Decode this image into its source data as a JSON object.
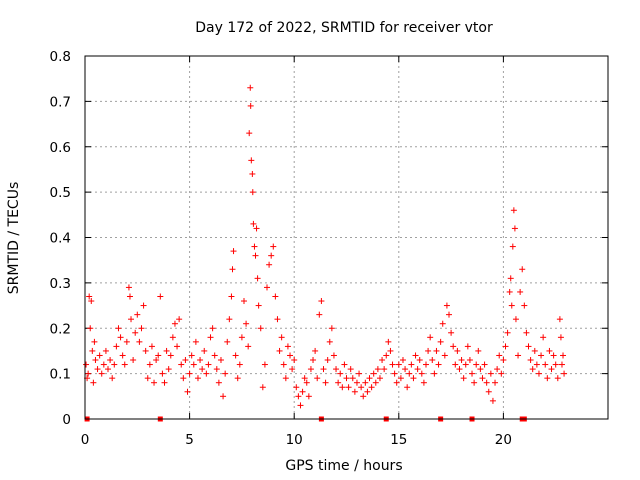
{
  "chart_data": {
    "type": "scatter",
    "title": "Day 172 of 2022, SRMTID for receiver vtor",
    "xlabel": "GPS time / hours",
    "ylabel": "SRMTID / TECUs",
    "xlim": [
      0,
      25
    ],
    "ylim": [
      0,
      0.8
    ],
    "xticks": [
      0,
      5,
      10,
      15,
      20
    ],
    "yticks": [
      0,
      0.1,
      0.2,
      0.3,
      0.4,
      0.5,
      0.6,
      0.7,
      0.8
    ],
    "xtick_labels": [
      "0",
      "5",
      "10",
      "15",
      "20"
    ],
    "ytick_labels": [
      "0",
      "0.1",
      "0.2",
      "0.3",
      "0.4",
      "0.5",
      "0.6",
      "0.7",
      "0.8"
    ],
    "grid": true,
    "series_color": "#ff0000",
    "marker": "plus",
    "gap_markers_x": [
      0.1,
      3.6,
      11.3,
      14.4,
      17.0,
      18.5,
      20.9,
      21.0
    ],
    "series": [
      {
        "name": "SRMTID",
        "points": [
          [
            0.05,
            0.12
          ],
          [
            0.1,
            0.09
          ],
          [
            0.15,
            0.1
          ],
          [
            0.2,
            0.27
          ],
          [
            0.25,
            0.2
          ],
          [
            0.3,
            0.26
          ],
          [
            0.35,
            0.15
          ],
          [
            0.4,
            0.08
          ],
          [
            0.45,
            0.17
          ],
          [
            0.5,
            0.13
          ],
          [
            0.6,
            0.11
          ],
          [
            0.7,
            0.14
          ],
          [
            0.8,
            0.1
          ],
          [
            0.9,
            0.12
          ],
          [
            1.0,
            0.15
          ],
          [
            1.1,
            0.11
          ],
          [
            1.2,
            0.13
          ],
          [
            1.3,
            0.09
          ],
          [
            1.4,
            0.12
          ],
          [
            1.5,
            0.16
          ],
          [
            1.6,
            0.2
          ],
          [
            1.7,
            0.18
          ],
          [
            1.8,
            0.14
          ],
          [
            1.9,
            0.12
          ],
          [
            2.0,
            0.17
          ],
          [
            2.1,
            0.29
          ],
          [
            2.15,
            0.27
          ],
          [
            2.2,
            0.22
          ],
          [
            2.3,
            0.13
          ],
          [
            2.4,
            0.19
          ],
          [
            2.5,
            0.23
          ],
          [
            2.6,
            0.17
          ],
          [
            2.7,
            0.2
          ],
          [
            2.8,
            0.25
          ],
          [
            2.9,
            0.15
          ],
          [
            3.0,
            0.09
          ],
          [
            3.1,
            0.12
          ],
          [
            3.2,
            0.16
          ],
          [
            3.3,
            0.08
          ],
          [
            3.4,
            0.13
          ],
          [
            3.5,
            0.14
          ],
          [
            3.6,
            0.27
          ],
          [
            3.7,
            0.1
          ],
          [
            3.8,
            0.08
          ],
          [
            3.9,
            0.15
          ],
          [
            4.0,
            0.11
          ],
          [
            4.1,
            0.14
          ],
          [
            4.2,
            0.18
          ],
          [
            4.3,
            0.21
          ],
          [
            4.4,
            0.16
          ],
          [
            4.5,
            0.22
          ],
          [
            4.6,
            0.12
          ],
          [
            4.7,
            0.09
          ],
          [
            4.8,
            0.13
          ],
          [
            4.9,
            0.06
          ],
          [
            5.0,
            0.1
          ],
          [
            5.1,
            0.14
          ],
          [
            5.2,
            0.12
          ],
          [
            5.3,
            0.17
          ],
          [
            5.4,
            0.09
          ],
          [
            5.5,
            0.13
          ],
          [
            5.6,
            0.11
          ],
          [
            5.7,
            0.15
          ],
          [
            5.8,
            0.1
          ],
          [
            5.9,
            0.12
          ],
          [
            6.0,
            0.18
          ],
          [
            6.1,
            0.2
          ],
          [
            6.2,
            0.14
          ],
          [
            6.3,
            0.11
          ],
          [
            6.4,
            0.08
          ],
          [
            6.5,
            0.13
          ],
          [
            6.6,
            0.05
          ],
          [
            6.7,
            0.1
          ],
          [
            6.8,
            0.17
          ],
          [
            6.9,
            0.22
          ],
          [
            7.0,
            0.27
          ],
          [
            7.05,
            0.33
          ],
          [
            7.1,
            0.37
          ],
          [
            7.2,
            0.14
          ],
          [
            7.3,
            0.09
          ],
          [
            7.4,
            0.12
          ],
          [
            7.5,
            0.18
          ],
          [
            7.6,
            0.26
          ],
          [
            7.7,
            0.21
          ],
          [
            7.8,
            0.16
          ],
          [
            7.85,
            0.63
          ],
          [
            7.9,
            0.73
          ],
          [
            7.92,
            0.69
          ],
          [
            7.95,
            0.57
          ],
          [
            8.0,
            0.54
          ],
          [
            8.02,
            0.5
          ],
          [
            8.05,
            0.43
          ],
          [
            8.1,
            0.38
          ],
          [
            8.15,
            0.36
          ],
          [
            8.2,
            0.42
          ],
          [
            8.25,
            0.31
          ],
          [
            8.3,
            0.25
          ],
          [
            8.4,
            0.2
          ],
          [
            8.5,
            0.07
          ],
          [
            8.6,
            0.12
          ],
          [
            8.7,
            0.29
          ],
          [
            8.8,
            0.34
          ],
          [
            8.9,
            0.36
          ],
          [
            9.0,
            0.38
          ],
          [
            9.1,
            0.27
          ],
          [
            9.2,
            0.22
          ],
          [
            9.3,
            0.15
          ],
          [
            9.4,
            0.18
          ],
          [
            9.5,
            0.12
          ],
          [
            9.6,
            0.09
          ],
          [
            9.7,
            0.16
          ],
          [
            9.8,
            0.14
          ],
          [
            9.9,
            0.11
          ],
          [
            10.0,
            0.13
          ],
          [
            10.1,
            0.07
          ],
          [
            10.2,
            0.05
          ],
          [
            10.3,
            0.03
          ],
          [
            10.4,
            0.06
          ],
          [
            10.5,
            0.09
          ],
          [
            10.6,
            0.08
          ],
          [
            10.7,
            0.05
          ],
          [
            10.8,
            0.11
          ],
          [
            10.9,
            0.13
          ],
          [
            11.0,
            0.15
          ],
          [
            11.1,
            0.09
          ],
          [
            11.2,
            0.23
          ],
          [
            11.3,
            0.26
          ],
          [
            11.4,
            0.11
          ],
          [
            11.5,
            0.08
          ],
          [
            11.6,
            0.13
          ],
          [
            11.7,
            0.17
          ],
          [
            11.8,
            0.2
          ],
          [
            11.9,
            0.14
          ],
          [
            12.0,
            0.11
          ],
          [
            12.1,
            0.08
          ],
          [
            12.2,
            0.1
          ],
          [
            12.3,
            0.07
          ],
          [
            12.4,
            0.12
          ],
          [
            12.5,
            0.09
          ],
          [
            12.6,
            0.07
          ],
          [
            12.7,
            0.11
          ],
          [
            12.8,
            0.09
          ],
          [
            12.9,
            0.06
          ],
          [
            13.0,
            0.08
          ],
          [
            13.1,
            0.1
          ],
          [
            13.2,
            0.07
          ],
          [
            13.3,
            0.05
          ],
          [
            13.4,
            0.08
          ],
          [
            13.5,
            0.06
          ],
          [
            13.6,
            0.09
          ],
          [
            13.7,
            0.07
          ],
          [
            13.8,
            0.1
          ],
          [
            13.9,
            0.08
          ],
          [
            14.0,
            0.11
          ],
          [
            14.1,
            0.09
          ],
          [
            14.2,
            0.13
          ],
          [
            14.3,
            0.11
          ],
          [
            14.4,
            0.14
          ],
          [
            14.5,
            0.17
          ],
          [
            14.6,
            0.15
          ],
          [
            14.7,
            0.12
          ],
          [
            14.8,
            0.1
          ],
          [
            14.9,
            0.08
          ],
          [
            15.0,
            0.12
          ],
          [
            15.1,
            0.09
          ],
          [
            15.2,
            0.13
          ],
          [
            15.3,
            0.11
          ],
          [
            15.4,
            0.07
          ],
          [
            15.5,
            0.1
          ],
          [
            15.6,
            0.12
          ],
          [
            15.7,
            0.09
          ],
          [
            15.8,
            0.14
          ],
          [
            15.9,
            0.11
          ],
          [
            16.0,
            0.13
          ],
          [
            16.1,
            0.1
          ],
          [
            16.2,
            0.08
          ],
          [
            16.3,
            0.12
          ],
          [
            16.4,
            0.15
          ],
          [
            16.5,
            0.18
          ],
          [
            16.6,
            0.13
          ],
          [
            16.7,
            0.1
          ],
          [
            16.8,
            0.15
          ],
          [
            16.9,
            0.12
          ],
          [
            17.0,
            0.17
          ],
          [
            17.1,
            0.21
          ],
          [
            17.2,
            0.14
          ],
          [
            17.3,
            0.25
          ],
          [
            17.4,
            0.23
          ],
          [
            17.5,
            0.19
          ],
          [
            17.6,
            0.16
          ],
          [
            17.7,
            0.12
          ],
          [
            17.8,
            0.15
          ],
          [
            17.9,
            0.11
          ],
          [
            18.0,
            0.13
          ],
          [
            18.1,
            0.09
          ],
          [
            18.2,
            0.12
          ],
          [
            18.3,
            0.16
          ],
          [
            18.4,
            0.13
          ],
          [
            18.5,
            0.1
          ],
          [
            18.6,
            0.08
          ],
          [
            18.7,
            0.12
          ],
          [
            18.8,
            0.15
          ],
          [
            18.9,
            0.11
          ],
          [
            19.0,
            0.09
          ],
          [
            19.1,
            0.12
          ],
          [
            19.2,
            0.08
          ],
          [
            19.3,
            0.06
          ],
          [
            19.4,
            0.1
          ],
          [
            19.5,
            0.04
          ],
          [
            19.6,
            0.08
          ],
          [
            19.7,
            0.11
          ],
          [
            19.8,
            0.14
          ],
          [
            19.9,
            0.1
          ],
          [
            20.0,
            0.13
          ],
          [
            20.1,
            0.16
          ],
          [
            20.2,
            0.19
          ],
          [
            20.3,
            0.28
          ],
          [
            20.35,
            0.31
          ],
          [
            20.4,
            0.25
          ],
          [
            20.45,
            0.38
          ],
          [
            20.5,
            0.46
          ],
          [
            20.55,
            0.42
          ],
          [
            20.6,
            0.22
          ],
          [
            20.7,
            0.14
          ],
          [
            20.8,
            0.28
          ],
          [
            20.9,
            0.33
          ],
          [
            21.0,
            0.25
          ],
          [
            21.1,
            0.19
          ],
          [
            21.2,
            0.16
          ],
          [
            21.3,
            0.13
          ],
          [
            21.4,
            0.11
          ],
          [
            21.5,
            0.15
          ],
          [
            21.6,
            0.12
          ],
          [
            21.7,
            0.1
          ],
          [
            21.8,
            0.14
          ],
          [
            21.9,
            0.18
          ],
          [
            22.0,
            0.12
          ],
          [
            22.1,
            0.09
          ],
          [
            22.2,
            0.15
          ],
          [
            22.3,
            0.11
          ],
          [
            22.4,
            0.14
          ],
          [
            22.5,
            0.12
          ],
          [
            22.6,
            0.09
          ],
          [
            22.7,
            0.22
          ],
          [
            22.75,
            0.18
          ],
          [
            22.8,
            0.12
          ],
          [
            22.85,
            0.14
          ],
          [
            22.9,
            0.1
          ]
        ]
      }
    ]
  }
}
